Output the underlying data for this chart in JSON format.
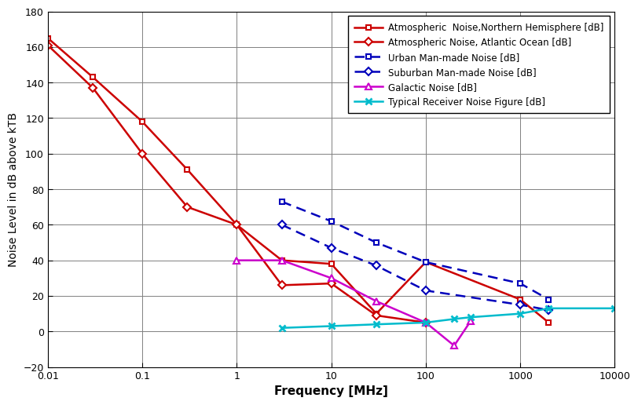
{
  "atm_north_x": [
    0.01,
    0.03,
    0.1,
    0.3,
    1,
    3,
    10,
    30,
    100,
    1000,
    2000
  ],
  "atm_north_y": [
    165,
    143,
    118,
    91,
    60,
    40,
    38,
    10,
    39,
    18,
    5
  ],
  "atm_atlantic_x": [
    0.01,
    0.03,
    0.1,
    0.3,
    1,
    3,
    10,
    30,
    100
  ],
  "atm_atlantic_y": [
    161,
    137,
    100,
    70,
    60,
    26,
    27,
    9,
    5
  ],
  "urban_x": [
    3,
    10,
    30,
    100,
    1000,
    2000
  ],
  "urban_y": [
    73,
    62,
    50,
    39,
    27,
    18
  ],
  "suburban_x": [
    3,
    10,
    30,
    100,
    1000,
    2000
  ],
  "suburban_y": [
    60,
    47,
    37,
    23,
    15,
    12
  ],
  "galactic_x": [
    1,
    3,
    10,
    30,
    100,
    200,
    300
  ],
  "galactic_y": [
    40,
    40,
    30,
    17,
    5,
    -8,
    6
  ],
  "receiver_x": [
    3,
    10,
    30,
    100,
    200,
    300,
    1000,
    2000,
    10000
  ],
  "receiver_y": [
    2,
    3,
    4,
    5,
    7,
    8,
    10,
    13,
    13
  ],
  "xlabel": "Frequency [MHz]",
  "ylabel": "Noise Level in dB above kTB",
  "ylim": [
    -20,
    180
  ],
  "yticks": [
    -20,
    0,
    20,
    40,
    60,
    80,
    100,
    120,
    140,
    160,
    180
  ],
  "xtick_labels": [
    "0.01",
    "0.1",
    "1",
    "10",
    "100",
    "1000",
    "10000"
  ],
  "xtick_vals": [
    0.01,
    0.1,
    1,
    10,
    100,
    1000,
    10000
  ],
  "legend_atm_north": "Atmospheric  Noise,Northern Hemisphere [dB]",
  "legend_atm_atlantic": "Atmospheric Noise, Atlantic Ocean [dB]",
  "legend_urban": "Urban Man-made Noise [dB]",
  "legend_suburban": "Suburban Man-made Noise [dB]",
  "legend_galactic": "Galactic Noise [dB]",
  "legend_receiver": "Typical Receiver Noise Figure [dB]",
  "color_atm": "#cc0000",
  "color_urban": "#0000bb",
  "color_suburban": "#0000bb",
  "color_galactic": "#cc00cc",
  "color_receiver": "#00bbcc",
  "background": "#ffffff"
}
